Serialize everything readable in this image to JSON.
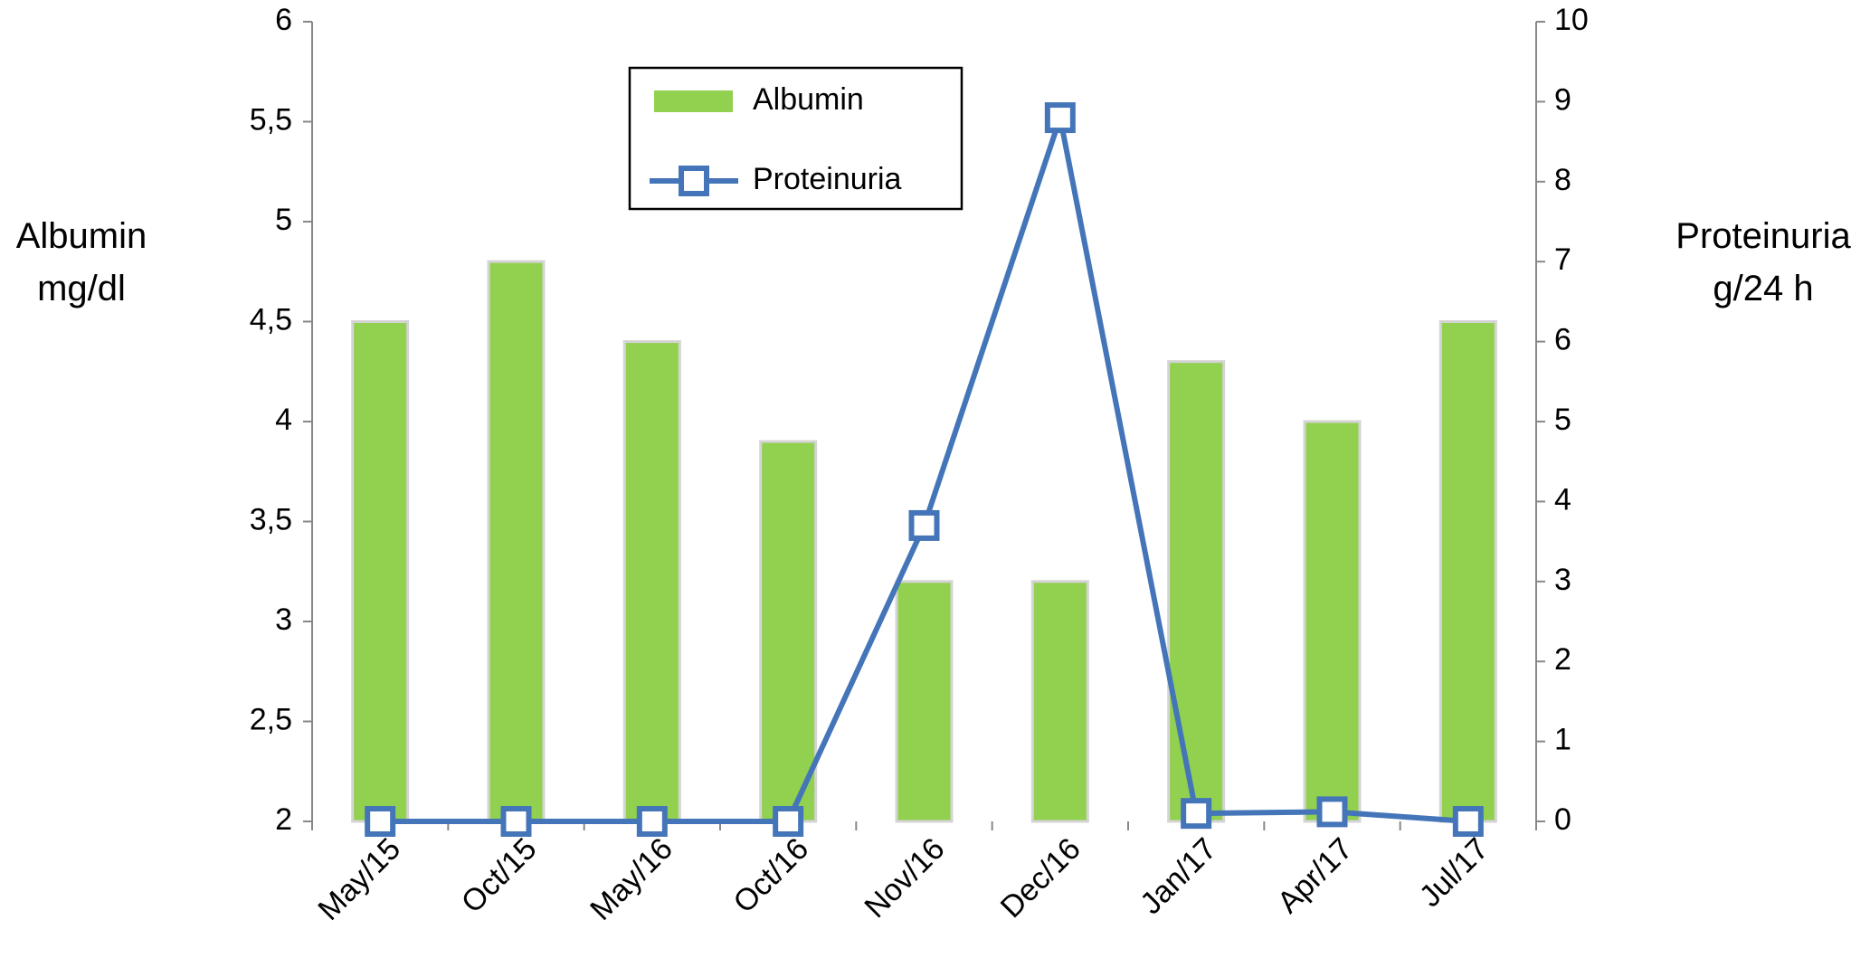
{
  "chart_data": {
    "type": "bar",
    "ylabel": "Albumin mg/dl",
    "y2label": "Proteinuria g/24 h",
    "categories": [
      "May/15",
      "Oct/15",
      "May/16",
      "Oct/16",
      "Nov/16",
      "Dec/16",
      "Jan/17",
      "Apr/17",
      "Jul/17"
    ],
    "series": [
      {
        "name": "Albumin",
        "type": "bar",
        "color": "#92d050",
        "values": [
          4.5,
          4.8,
          4.4,
          3.9,
          3.2,
          3.2,
          4.3,
          4.0,
          4.5
        ]
      },
      {
        "name": "Proteinuria",
        "type": "line",
        "axis": "y2",
        "color": "#4475b8",
        "values": [
          0,
          0,
          0,
          0,
          3.7,
          8.8,
          0.1,
          0.12,
          0
        ]
      }
    ],
    "ylim": [
      2,
      6
    ],
    "yticks": [
      2,
      {
        "value": 2.5,
        "label": "2,5"
      },
      3,
      {
        "value": 3.5,
        "label": "3,5"
      },
      4,
      {
        "value": 4.5,
        "label": "4,5"
      },
      5,
      {
        "value": 5.5,
        "label": "5,5"
      },
      6
    ],
    "y2lim": [
      0,
      10
    ],
    "y2ticks": [
      0,
      1,
      2,
      3,
      4,
      5,
      6,
      7,
      8,
      9,
      10
    ],
    "grid": false,
    "legend": "top-center"
  }
}
